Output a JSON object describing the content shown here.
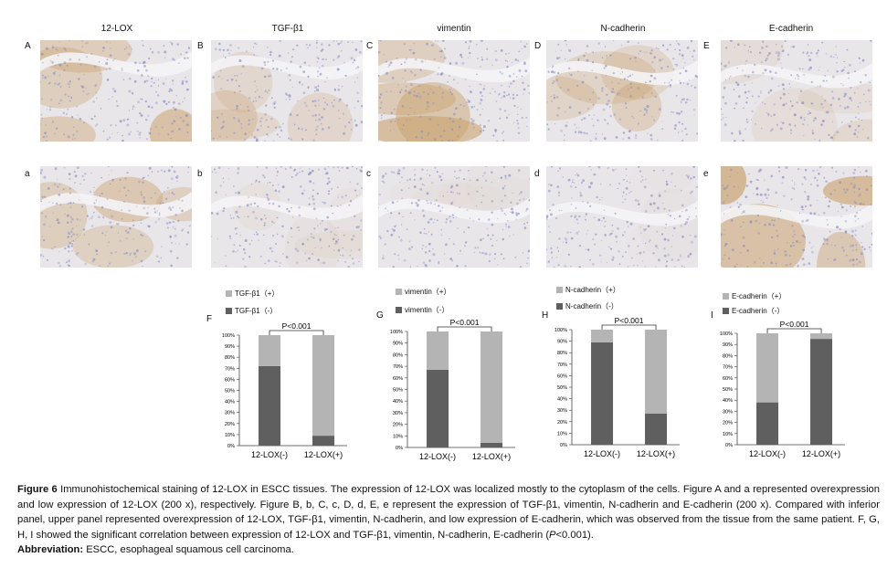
{
  "columns": [
    {
      "title": "12-LOX",
      "upper_letter": "A",
      "lower_letter": "a"
    },
    {
      "title": "TGF-β1",
      "upper_letter": "B",
      "lower_letter": "b"
    },
    {
      "title": "vimentin",
      "upper_letter": "C",
      "lower_letter": "c"
    },
    {
      "title": "N-cadherin",
      "upper_letter": "D",
      "lower_letter": "d"
    },
    {
      "title": "E-cadherin",
      "upper_letter": "E",
      "lower_letter": "e"
    }
  ],
  "colors": {
    "negative_dark": "#5f5f5f",
    "positive_light": "#b4b4b4",
    "tissue_base": "#e9e6ea",
    "nuclei": "#8a8fbf",
    "brown_stain": "#c9a06a"
  },
  "charts": [
    {
      "panel": "F",
      "legend_pos": "TGF-β1（+）",
      "legend_neg": "TGF-β1（-）",
      "pvalue": "P<0.001"
    },
    {
      "panel": "G",
      "legend_pos": "vimentin（+）",
      "legend_neg": "vimentin（-）",
      "pvalue": "P<0.001"
    },
    {
      "panel": "H",
      "legend_pos": "N-cadherin（+）",
      "legend_neg": "N-cadherin（-）",
      "pvalue": "P<0.001"
    },
    {
      "panel": "I",
      "legend_pos": "E-cadherin（+）",
      "legend_neg": "E-cadherin（-）",
      "pvalue": "P<0.001"
    }
  ],
  "chart_data": [
    {
      "type": "bar",
      "stacked": true,
      "panel": "F",
      "categories": [
        "12-LOX(-)",
        "12-LOX(+)"
      ],
      "series": [
        {
          "name": "TGF-β1（-）",
          "values": [
            72,
            9
          ]
        },
        {
          "name": "TGF-β1（+）",
          "values": [
            28,
            91
          ]
        }
      ],
      "yticks": [
        "0%",
        "10%",
        "20%",
        "30%",
        "40%",
        "50%",
        "60%",
        "70%",
        "80%",
        "90%",
        "100%"
      ],
      "ylim": [
        0,
        100
      ]
    },
    {
      "type": "bar",
      "stacked": true,
      "panel": "G",
      "categories": [
        "12-LOX(-)",
        "12-LOX(+)"
      ],
      "series": [
        {
          "name": "vimentin（-）",
          "values": [
            67,
            4
          ]
        },
        {
          "name": "vimentin（+）",
          "values": [
            33,
            96
          ]
        }
      ],
      "yticks": [
        "0%",
        "10%",
        "20%",
        "30%",
        "40%",
        "50%",
        "60%",
        "70%",
        "80%",
        "90%",
        "100%"
      ],
      "ylim": [
        0,
        100
      ]
    },
    {
      "type": "bar",
      "stacked": true,
      "panel": "H",
      "categories": [
        "12-LOX(-)",
        "12-LOX(+)"
      ],
      "series": [
        {
          "name": "N-cadherin（-）",
          "values": [
            89,
            27
          ]
        },
        {
          "name": "N-cadherin（+）",
          "values": [
            11,
            73
          ]
        }
      ],
      "yticks": [
        "0%",
        "10%",
        "20%",
        "30%",
        "40%",
        "50%",
        "60%",
        "70%",
        "80%",
        "90%",
        "100%"
      ],
      "ylim": [
        0,
        100
      ]
    },
    {
      "type": "bar",
      "stacked": true,
      "panel": "I",
      "categories": [
        "12-LOX(-)",
        "12-LOX(+)"
      ],
      "series": [
        {
          "name": "E-cadherin（-）",
          "values": [
            38,
            95
          ]
        },
        {
          "name": "E-cadherin（+）",
          "values": [
            62,
            5
          ]
        }
      ],
      "yticks": [
        "0%",
        "10%",
        "20%",
        "30%",
        "40%",
        "50%",
        "60%",
        "70%",
        "80%",
        "90%",
        "100%"
      ],
      "ylim": [
        0,
        100
      ]
    }
  ],
  "caption": {
    "label": "Figure 6",
    "text": " Immunohistochemical staining of 12-LOX in ESCC tissues. The expression of 12-LOX was localized mostly to the cytoplasm of the cells. Figure A and a represented overexpression and low expression of 12-LOX (200 x), respectively. Figure B, b, C, c, D, d, E, e represent the expression of TGF-β1, vimentin, N-cadherin and E-cadherin (200 x). Compared with inferior panel, upper panel represented overexpression of 12-LOX, TGF-β1, vimentin, N-cadherin, and low expression of E-cadherin, which was observed from the tissue from the same patient. F, G, H, I showed the significant correlation between expression of 12-LOX and TGF-β1, vimentin, N-cadherin, E-cadherin (",
    "p_italic": "P",
    "text_end": "<0.001).",
    "abbrev_label": "Abbreviation:",
    "abbrev_text": " ESCC, esophageal squamous cell carcinoma."
  }
}
